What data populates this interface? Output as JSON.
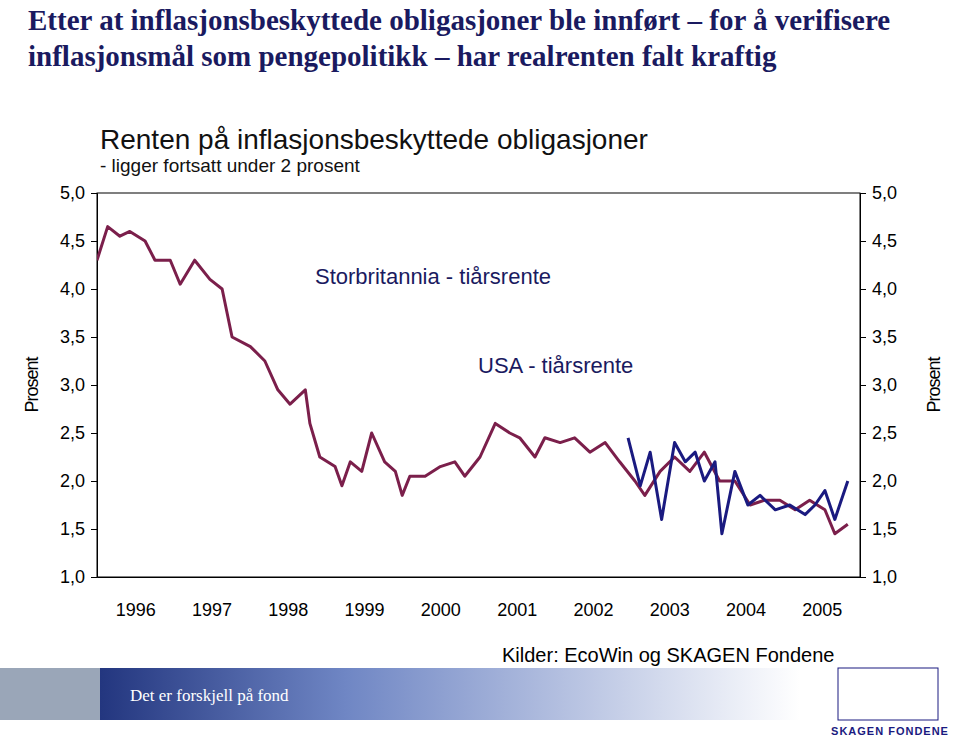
{
  "chart_data": {
    "type": "line",
    "title": "Etter at inflasjonsbeskyttede obligasjoner ble innført – for å verifisere inflasjonsmål som pengepolitikk – har realrenten falt kraftig",
    "subtitle": "Renten på inflasjonsbeskyttede obligasjoner",
    "y_label": "Prosent",
    "annotations": [
      "- ligger fortsatt under 2 prosent",
      "Kilder: EcoWin og SKAGEN Fondene",
      "Det er forskjell på fond",
      "SKAGEN FONDENE"
    ],
    "x": [
      1996.0,
      1996.14,
      1996.3,
      1996.43,
      1996.63,
      1996.76,
      1996.96,
      1997.09,
      1997.28,
      1997.48,
      1997.64,
      1997.77,
      1998.01,
      1998.2,
      1998.37,
      1998.53,
      1998.73,
      1998.79,
      1998.92,
      1999.12,
      1999.21,
      1999.32,
      1999.47,
      1999.6,
      1999.77,
      1999.91,
      2000.0,
      2000.1,
      2000.3,
      2000.5,
      2000.69,
      2000.82,
      2001.02,
      2001.22,
      2001.41,
      2001.54,
      2001.74,
      2001.87,
      2002.07,
      2002.26,
      2002.46,
      2002.66,
      2002.85,
      2003.05,
      2003.18,
      2003.38,
      2003.57,
      2003.77,
      2003.96,
      2004.16,
      2004.36,
      2004.56,
      2004.75,
      2004.95,
      2005.15,
      2005.34,
      2005.54,
      2005.67,
      2005.84
    ],
    "series": [
      {
        "name": "Storbritannia - tiårsrente",
        "color": "#7b1f4b",
        "values": [
          4.3,
          4.65,
          4.55,
          4.6,
          4.5,
          4.3,
          4.3,
          4.05,
          4.3,
          4.1,
          4.0,
          3.5,
          3.4,
          3.25,
          2.95,
          2.8,
          2.95,
          2.6,
          2.25,
          2.15,
          1.95,
          2.2,
          2.1,
          2.5,
          2.2,
          2.1,
          1.85,
          2.05,
          2.05,
          2.15,
          2.2,
          2.05,
          2.25,
          2.6,
          2.5,
          2.45,
          2.25,
          2.45,
          2.4,
          2.45,
          2.3,
          2.4,
          2.2,
          2.0,
          1.85,
          2.1,
          2.25,
          2.1,
          2.3,
          2.0,
          2.0,
          1.75,
          1.8,
          1.8,
          1.7,
          1.8,
          1.7,
          1.45,
          1.55
        ]
      },
      {
        "name": "USA - tiårsrente",
        "color": "#1a1a80",
        "x": [
          2002.96,
          2003.12,
          2003.25,
          2003.4,
          2003.57,
          2003.71,
          2003.84,
          2003.96,
          2004.1,
          2004.19,
          2004.36,
          2004.53,
          2004.69,
          2004.89,
          2005.08,
          2005.28,
          2005.41,
          2005.54,
          2005.67,
          2005.84
        ],
        "values": [
          2.45,
          1.95,
          2.3,
          1.6,
          2.4,
          2.2,
          2.3,
          2.0,
          2.2,
          1.45,
          2.1,
          1.75,
          1.85,
          1.7,
          1.75,
          1.65,
          1.75,
          1.9,
          1.6,
          2.0
        ]
      }
    ],
    "xlim": [
      1996,
      2006
    ],
    "xticks": [
      {
        "value": 1996.5,
        "label": "1996"
      },
      {
        "value": 1997.5,
        "label": "1997"
      },
      {
        "value": 1998.5,
        "label": "1998"
      },
      {
        "value": 1999.5,
        "label": "1999"
      },
      {
        "value": 2000.5,
        "label": "2000"
      },
      {
        "value": 2001.5,
        "label": "2001"
      },
      {
        "value": 2002.5,
        "label": "2002"
      },
      {
        "value": 2003.5,
        "label": "2003"
      },
      {
        "value": 2004.5,
        "label": "2004"
      },
      {
        "value": 2005.5,
        "label": "2005"
      }
    ],
    "ylim": [
      1,
      5
    ],
    "yticks": [
      {
        "value": 1,
        "label": "1,0"
      },
      {
        "value": 1.5,
        "label": "1,5"
      },
      {
        "value": 2,
        "label": "2,0"
      },
      {
        "value": 2.5,
        "label": "2,5"
      },
      {
        "value": 3,
        "label": "3,0"
      },
      {
        "value": 3.5,
        "label": "3,5"
      },
      {
        "value": 4,
        "label": "4,0"
      },
      {
        "value": 4.5,
        "label": "4,5"
      },
      {
        "value": 5,
        "label": "5,0"
      }
    ],
    "grid": false
  }
}
